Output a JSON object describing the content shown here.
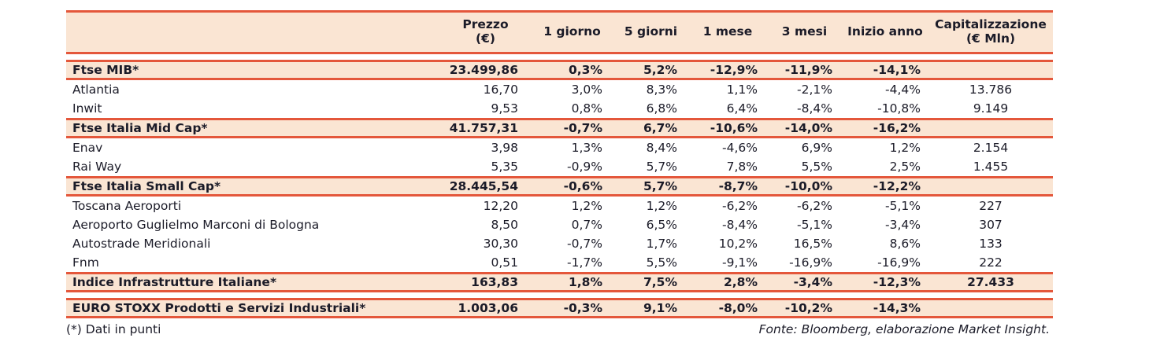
{
  "colors": {
    "rule": "#e4573b",
    "band_bg": "#fae5d3",
    "text": "#1b1b28"
  },
  "table": {
    "columns": [
      {
        "key": "name",
        "l1": ""
      },
      {
        "key": "price",
        "l1": "Prezzo",
        "l2": "(€)"
      },
      {
        "key": "d1",
        "l1": "1 giorno"
      },
      {
        "key": "d5",
        "l1": "5 giorni"
      },
      {
        "key": "m1",
        "l1": "1 mese"
      },
      {
        "key": "m3",
        "l1": "3 mesi"
      },
      {
        "key": "ytd",
        "l1": "Inizio anno"
      },
      {
        "key": "cap",
        "l1": "Capitalizzazione",
        "l2": "(€ Mln)"
      }
    ],
    "rows": [
      {
        "type": "index",
        "name": "Ftse MIB*",
        "price": "23.499,86",
        "d1": "0,3%",
        "d5": "5,2%",
        "m1": "-12,9%",
        "m3": "-11,9%",
        "ytd": "-14,1%",
        "cap": ""
      },
      {
        "type": "stock",
        "name": "Atlantia",
        "price": "16,70",
        "d1": "3,0%",
        "d5": "8,3%",
        "m1": "1,1%",
        "m3": "-2,1%",
        "ytd": "-4,4%",
        "cap": "13.786"
      },
      {
        "type": "stock",
        "name": "Inwit",
        "price": "9,53",
        "d1": "0,8%",
        "d5": "6,8%",
        "m1": "6,4%",
        "m3": "-8,4%",
        "ytd": "-10,8%",
        "cap": "9.149"
      },
      {
        "type": "index",
        "name": "Ftse Italia Mid Cap*",
        "price": "41.757,31",
        "d1": "-0,7%",
        "d5": "6,7%",
        "m1": "-10,6%",
        "m3": "-14,0%",
        "ytd": "-16,2%",
        "cap": ""
      },
      {
        "type": "stock",
        "name": "Enav",
        "price": "3,98",
        "d1": "1,3%",
        "d5": "8,4%",
        "m1": "-4,6%",
        "m3": "6,9%",
        "ytd": "1,2%",
        "cap": "2.154"
      },
      {
        "type": "stock",
        "name": "Rai Way",
        "price": "5,35",
        "d1": "-0,9%",
        "d5": "5,7%",
        "m1": "7,8%",
        "m3": "5,5%",
        "ytd": "2,5%",
        "cap": "1.455"
      },
      {
        "type": "index",
        "name": "Ftse Italia Small Cap*",
        "price": "28.445,54",
        "d1": "-0,6%",
        "d5": "5,7%",
        "m1": "-8,7%",
        "m3": "-10,0%",
        "ytd": "-12,2%",
        "cap": ""
      },
      {
        "type": "stock",
        "name": "Toscana Aeroporti",
        "price": "12,20",
        "d1": "1,2%",
        "d5": "1,2%",
        "m1": "-6,2%",
        "m3": "-6,2%",
        "ytd": "-5,1%",
        "cap": "227"
      },
      {
        "type": "stock",
        "name": "Aeroporto Guglielmo Marconi di Bologna",
        "price": "8,50",
        "d1": "0,7%",
        "d5": "6,5%",
        "m1": "-8,4%",
        "m3": "-5,1%",
        "ytd": "-3,4%",
        "cap": "307"
      },
      {
        "type": "stock",
        "name": "Autostrade Meridionali",
        "price": "30,30",
        "d1": "-0,7%",
        "d5": "1,7%",
        "m1": "10,2%",
        "m3": "16,5%",
        "ytd": "8,6%",
        "cap": "133"
      },
      {
        "type": "stock",
        "name": "Fnm",
        "price": "0,51",
        "d1": "-1,7%",
        "d5": "5,5%",
        "m1": "-9,1%",
        "m3": "-16,9%",
        "ytd": "-16,9%",
        "cap": "222"
      },
      {
        "type": "index",
        "name": "Indice Infrastrutture Italiane*",
        "price": "163,83",
        "d1": "1,8%",
        "d5": "7,5%",
        "m1": "2,8%",
        "m3": "-3,4%",
        "ytd": "-12,3%",
        "cap": "27.433"
      },
      {
        "type": "index",
        "name": "EURO STOXX Prodotti e Servizi Industriali*",
        "price": "1.003,06",
        "d1": "-0,3%",
        "d5": "9,1%",
        "m1": "-8,0%",
        "m3": "-10,2%",
        "ytd": "-14,3%",
        "cap": ""
      }
    ]
  },
  "footer": {
    "note": "(*) Dati in punti",
    "source": "Fonte: Bloomberg, elaborazione Market Insight."
  }
}
